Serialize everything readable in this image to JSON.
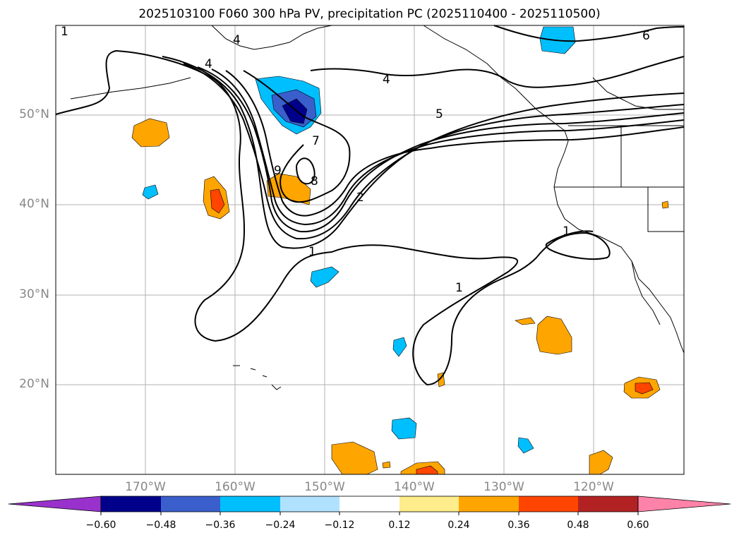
{
  "title": "2025103100 F060 300 hPa PV, precipitation PC (2025110400 - 2025110500)",
  "map": {
    "lat_labels": [
      "50°N",
      "40°N",
      "30°N",
      "20°N"
    ],
    "lon_labels": [
      "170°W",
      "160°W",
      "150°W",
      "140°W",
      "130°W",
      "120°W"
    ],
    "extent": {
      "lon": [
        -180,
        -110
      ],
      "lat": [
        10,
        60
      ]
    },
    "gridline_color": "#b0b0b0",
    "contour_labels": [
      "1",
      "4",
      "4",
      "4",
      "5",
      "6",
      "7",
      "8",
      "9",
      "2",
      "1",
      "1",
      "1"
    ]
  },
  "colorbar": {
    "ticks": [
      "−0.60",
      "−0.48",
      "−0.36",
      "−0.24",
      "−0.12",
      "0.12",
      "0.24",
      "0.36",
      "0.48",
      "0.60"
    ],
    "colors": [
      "#9932cc",
      "#00008b",
      "#3a5fcd",
      "#00bfff",
      "#b0e2ff",
      "#ffffff",
      "#ffec8b",
      "#ffa500",
      "#ff4500",
      "#b22222",
      "#ff83a8"
    ]
  }
}
